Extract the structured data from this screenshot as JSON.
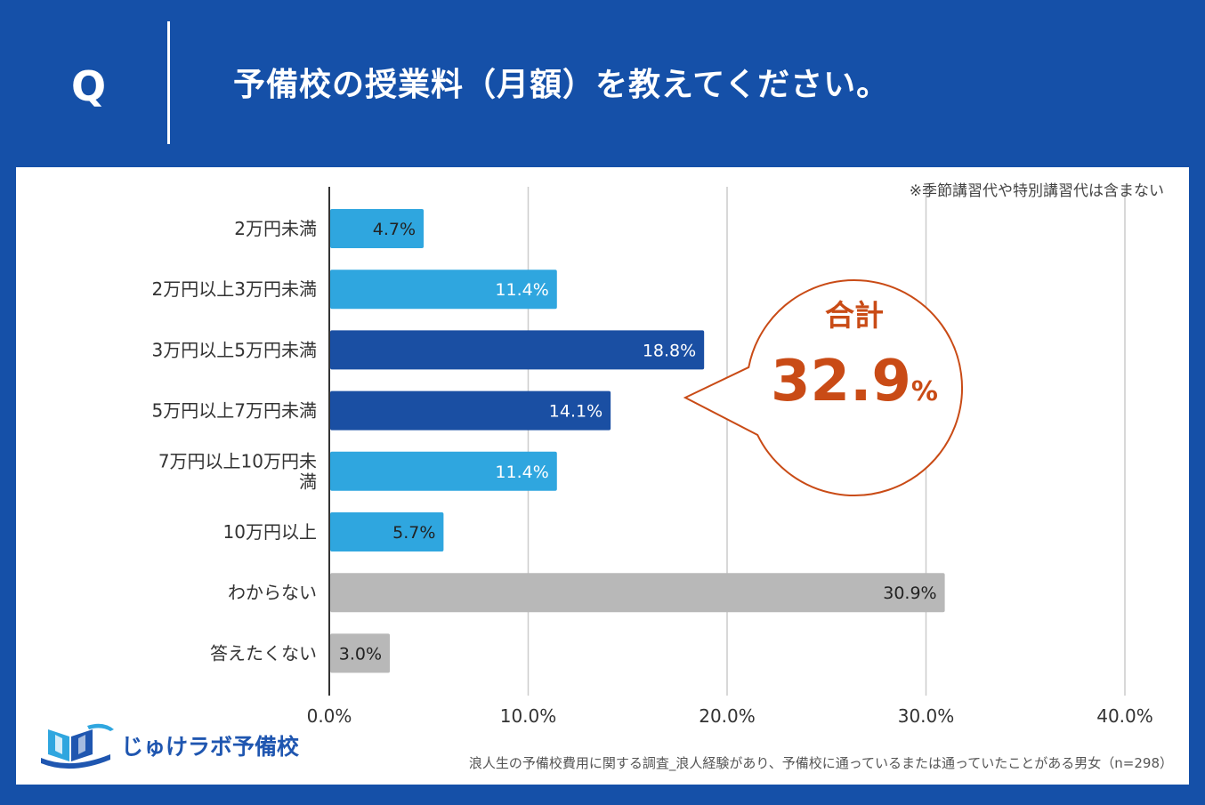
{
  "header": {
    "q_letter": "Q",
    "title": "予備校の授業料（月額）を教えてください。"
  },
  "note": "※季節講習代や特別講習代は含まない",
  "callout": {
    "label": "合計",
    "value_main": "32.9",
    "value_unit": "%"
  },
  "logo": {
    "text": "じゅけラボ予備校"
  },
  "source": "浪人生の予備校費用に関する調査_浪人経験があり、予備校に通っているまたは通っていたことがある男女（n=298）",
  "colors": {
    "header_bg": "#1550a8",
    "bar_light": "#2fa6df",
    "bar_dark": "#1a4fa3",
    "bar_gray": "#b8b8b8",
    "callout": "#c94b16"
  },
  "chart_data": {
    "type": "bar",
    "orientation": "horizontal",
    "categories": [
      "2万円未満",
      "2万円以上3万円未満",
      "3万円以上5万円未満",
      "5万円以上7万円未満",
      "7万円以上10万円未満",
      "10万円以上",
      "わからない",
      "答えたくない"
    ],
    "category_lines": [
      [
        "2万円未満"
      ],
      [
        "2万円以上3万円未満"
      ],
      [
        "3万円以上5万円未満"
      ],
      [
        "5万円以上7万円未満"
      ],
      [
        "7万円以上10万円未",
        "満"
      ],
      [
        "10万円以上"
      ],
      [
        "わからない"
      ],
      [
        "答えたくない"
      ]
    ],
    "values": [
      4.7,
      11.4,
      18.8,
      14.1,
      11.4,
      5.7,
      30.9,
      3.0
    ],
    "value_labels": [
      "4.7%",
      "11.4%",
      "18.8%",
      "14.1%",
      "11.4%",
      "5.7%",
      "30.9%",
      "3.0%"
    ],
    "bar_color_keys": [
      "bar_light",
      "bar_light",
      "bar_dark",
      "bar_dark",
      "bar_light",
      "bar_light",
      "bar_gray",
      "bar_gray"
    ],
    "label_color_keys": [
      "dark",
      "white",
      "white",
      "white",
      "white",
      "dark",
      "dark",
      "dark"
    ],
    "xlim": [
      0,
      40
    ],
    "xticks": [
      0,
      10,
      20,
      30,
      40
    ],
    "xtick_labels": [
      "0.0%",
      "10.0%",
      "20.0%",
      "30.0%",
      "40.0%"
    ],
    "grid": true,
    "title": "",
    "xlabel": "",
    "ylabel": ""
  }
}
